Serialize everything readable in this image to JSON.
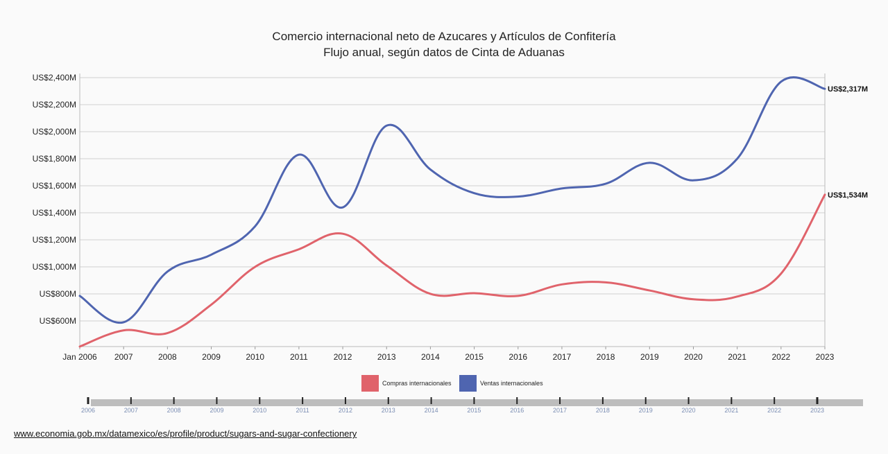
{
  "chart_data": {
    "type": "line",
    "title": "Comercio internacional neto de Azucares y Artículos de Confitería",
    "subtitle": "Flujo anual, según datos de Cinta de Aduanas",
    "x": [
      "Jan 2006",
      "2007",
      "2008",
      "2009",
      "2010",
      "2011",
      "2012",
      "2013",
      "2014",
      "2015",
      "2016",
      "2017",
      "2018",
      "2019",
      "2020",
      "2021",
      "2022",
      "2023"
    ],
    "series": [
      {
        "name": "Compras internacionales",
        "color": "#e0636b",
        "values": [
          410,
          530,
          510,
          720,
          1000,
          1130,
          1245,
          1010,
          800,
          805,
          785,
          870,
          885,
          825,
          760,
          780,
          950,
          1534
        ],
        "end_label": "US$1,534M"
      },
      {
        "name": "Ventas internacionales",
        "color": "#4f65b0",
        "values": [
          785,
          590,
          965,
          1090,
          1300,
          1830,
          1440,
          2045,
          1720,
          1545,
          1520,
          1580,
          1615,
          1770,
          1640,
          1800,
          2370,
          2317
        ],
        "end_label": "US$2,317M"
      }
    ],
    "y_ticks": [
      {
        "v": 600,
        "label": "US$600M"
      },
      {
        "v": 800,
        "label": "US$800M"
      },
      {
        "v": 1000,
        "label": "US$1,000M"
      },
      {
        "v": 1200,
        "label": "US$1,200M"
      },
      {
        "v": 1400,
        "label": "US$1,400M"
      },
      {
        "v": 1600,
        "label": "US$1,600M"
      },
      {
        "v": 1800,
        "label": "US$1,800M"
      },
      {
        "v": 2000,
        "label": "US$2,000M"
      },
      {
        "v": 2200,
        "label": "US$2,200M"
      },
      {
        "v": 2400,
        "label": "US$2,400M"
      }
    ],
    "ylim": [
      410,
      2400
    ],
    "grid": true,
    "legend_position": "bottom"
  },
  "timeline": {
    "labels": [
      "2006",
      "2007",
      "2008",
      "2009",
      "2010",
      "2011",
      "2012",
      "2013",
      "2014",
      "2015",
      "2016",
      "2017",
      "2018",
      "2019",
      "2020",
      "2021",
      "2022",
      "2023"
    ]
  },
  "source": {
    "text": "www.economia.gob.mx/datamexico/es/profile/product/sugars-and-sugar-confectionery"
  }
}
